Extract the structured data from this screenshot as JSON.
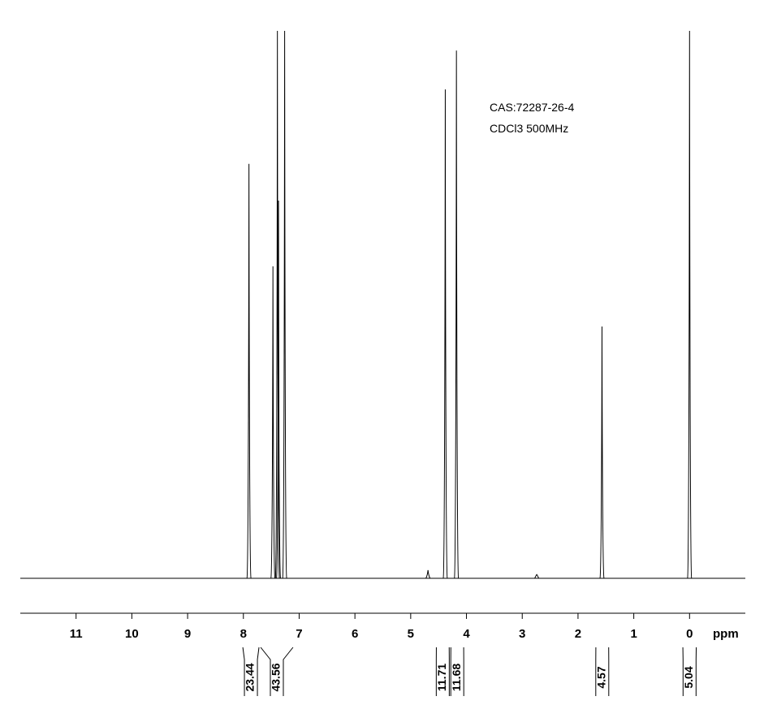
{
  "chart_data": {
    "type": "nmr",
    "annotations": [
      "CAS:72287-26-4",
      "CDCl3 500MHz"
    ],
    "x_label": "ppm",
    "xlim": [
      12,
      -1
    ],
    "ylim": [
      0,
      100
    ],
    "xticks": [
      11,
      10,
      9,
      8,
      7,
      6,
      5,
      4,
      3,
      2,
      1,
      0
    ],
    "color": "#000000",
    "peaks": {
      "x": [
        7.9,
        7.47,
        7.39,
        7.37,
        7.26,
        4.69,
        4.38,
        4.18,
        2.74,
        1.57,
        0.0
      ],
      "values": [
        75.7,
        57,
        100,
        69,
        100,
        1.5,
        89.3,
        96.4,
        0.7,
        46,
        100
      ]
    },
    "integrals": {
      "ranges": [
        [
          8.01,
          7.72
        ],
        [
          7.69,
          7.11
        ],
        [
          4.54,
          4.31
        ],
        [
          4.28,
          4.05
        ],
        [
          1.68,
          1.45
        ],
        [
          0.12,
          -0.12
        ]
      ],
      "values": [
        23.44,
        43.56,
        11.71,
        11.68,
        4.57,
        5.04
      ]
    }
  }
}
